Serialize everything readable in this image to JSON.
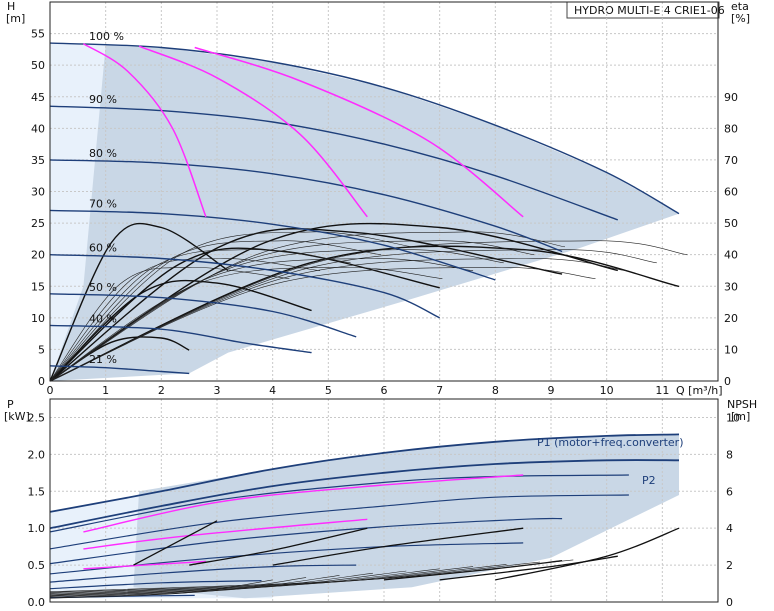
{
  "title": "HYDRO MULTI-E 4 CRIE1-06",
  "colors": {
    "speed_curve": "#1e3f7a",
    "efficiency_curve": "#ff2cff",
    "iso_efficiency": "#111111",
    "operating_area": "#c9d7e6",
    "light_area": "#e8f1fb",
    "grid": "#c8c8c8"
  },
  "top_panel": {
    "y_label_line1": "H",
    "y_label_line2": "[m]",
    "y2_label_line1": "eta",
    "y2_label_line2": "[%]",
    "x_label": "Q [m³/h]"
  },
  "bottom_panel": {
    "y_label_line1": "P",
    "y_label_line2": "[kW]",
    "y2_label_line1": "NPSH",
    "y2_label_line2": "[m]",
    "p1_label": "P1 (motor+freq.converter)",
    "p2_label": "P2"
  },
  "chart_data": [
    {
      "type": "line",
      "title": "HYDRO MULTI-E 4 CRIE1-06",
      "xlabel": "Q [m³/h]",
      "ylabel": "H [m]",
      "y2label": "eta [%]",
      "xlim": [
        0,
        12
      ],
      "ylim": [
        0,
        60
      ],
      "y2lim": [
        0,
        120
      ],
      "x_ticks": [
        0,
        1,
        2,
        3,
        4,
        5,
        6,
        7,
        8,
        9,
        10,
        11
      ],
      "y_ticks": [
        0,
        5,
        10,
        15,
        20,
        25,
        30,
        35,
        40,
        45,
        50,
        55
      ],
      "y2_ticks": [
        0,
        10,
        20,
        30,
        40,
        50,
        60,
        70,
        80,
        90
      ],
      "grid": true,
      "speed_curves": [
        {
          "name": "100 %",
          "points": [
            [
              0,
              53.5
            ],
            [
              2,
              52.8
            ],
            [
              4,
              50.5
            ],
            [
              6,
              46.5
            ],
            [
              8,
              40.5
            ],
            [
              10,
              33
            ],
            [
              11.3,
              26.5
            ]
          ]
        },
        {
          "name": "90 %",
          "points": [
            [
              0,
              43.5
            ],
            [
              2,
              42.8
            ],
            [
              4,
              41
            ],
            [
              6,
              37.5
            ],
            [
              8,
              32.5
            ],
            [
              10.2,
              25.5
            ]
          ]
        },
        {
          "name": "80 %",
          "points": [
            [
              0,
              35
            ],
            [
              2,
              34.5
            ],
            [
              4,
              32.8
            ],
            [
              6,
              29.5
            ],
            [
              8,
              24.5
            ],
            [
              9.2,
              20.5
            ]
          ]
        },
        {
          "name": "70 %",
          "points": [
            [
              0,
              27
            ],
            [
              2,
              26.5
            ],
            [
              4,
              24.8
            ],
            [
              6,
              21.5
            ],
            [
              8,
              16
            ]
          ]
        },
        {
          "name": "60 %",
          "points": [
            [
              0,
              20
            ],
            [
              2,
              19.4
            ],
            [
              4,
              17.5
            ],
            [
              6,
              14
            ],
            [
              7,
              10
            ]
          ]
        },
        {
          "name": "50 %",
          "points": [
            [
              0,
              13.8
            ],
            [
              2,
              13.2
            ],
            [
              4,
              11
            ],
            [
              5.5,
              7
            ]
          ]
        },
        {
          "name": "40 %",
          "points": [
            [
              0,
              8.8
            ],
            [
              2,
              8.2
            ],
            [
              3.5,
              6
            ],
            [
              4.7,
              4.5
            ]
          ]
        },
        {
          "name": "21 %",
          "points": [
            [
              0,
              2.4
            ],
            [
              1,
              2.1
            ],
            [
              2,
              1.5
            ],
            [
              2.5,
              1.2
            ]
          ]
        }
      ],
      "efficiency_lines": [
        [
          [
            0.6,
            53.4
          ],
          [
            1.4,
            49
          ],
          [
            2.2,
            40
          ],
          [
            2.8,
            26
          ]
        ],
        [
          [
            1.6,
            53
          ],
          [
            3,
            48
          ],
          [
            4.5,
            39
          ],
          [
            5.7,
            26
          ]
        ],
        [
          [
            2.6,
            52.8
          ],
          [
            4.5,
            47.5
          ],
          [
            6.8,
            38
          ],
          [
            8.5,
            26
          ]
        ]
      ],
      "iso_efficiency_curves": [
        {
          "peak_q": 2.0,
          "peak_h": 6.8,
          "end_q": 2.5
        },
        {
          "peak_q": 3.0,
          "peak_h": 15.5,
          "end_q": 4.7
        },
        {
          "peak_q": 4.2,
          "peak_h": 20.5,
          "end_q": 7.0
        },
        {
          "peak_q": 5.5,
          "peak_h": 23.5,
          "end_q": 9.2
        },
        {
          "peak_q": 7.0,
          "peak_h": 24.3,
          "end_q": 10.2
        },
        {
          "peak_q": 8.5,
          "peak_h": 20.8,
          "end_q": 11.3
        },
        {
          "peak_q": 2.0,
          "peak_h": 24.3,
          "end_q": 3.2
        }
      ]
    },
    {
      "type": "line",
      "xlabel": "Q [m³/h]",
      "ylabel": "P [kW]",
      "y2label": "NPSH [m]",
      "xlim": [
        0,
        12
      ],
      "ylim": [
        0,
        2.75
      ],
      "y2lim": [
        0,
        11
      ],
      "y_ticks": [
        0,
        0.5,
        1.0,
        1.5,
        2.0,
        2.5
      ],
      "y2_ticks": [
        0,
        2,
        4,
        6,
        8,
        10
      ],
      "grid": true,
      "series": [
        {
          "name": "P1 (motor+freq.converter)",
          "points": [
            [
              0,
              1.22
            ],
            [
              2,
              1.5
            ],
            [
              4,
              1.8
            ],
            [
              6,
              2.02
            ],
            [
              8,
              2.17
            ],
            [
              10,
              2.25
            ],
            [
              11.3,
              2.27
            ]
          ]
        },
        {
          "name": "P2",
          "points": [
            [
              0,
              1.0
            ],
            [
              2,
              1.3
            ],
            [
              4,
              1.57
            ],
            [
              6,
              1.75
            ],
            [
              8,
              1.87
            ],
            [
              10,
              1.92
            ],
            [
              11.3,
              1.92
            ]
          ]
        }
      ],
      "speed_power_curves": [
        {
          "points": [
            [
              0,
              0.95
            ],
            [
              3,
              1.38
            ],
            [
              6,
              1.62
            ],
            [
              8,
              1.7
            ],
            [
              10.4,
              1.72
            ]
          ]
        },
        {
          "points": [
            [
              0,
              0.72
            ],
            [
              3,
              1.08
            ],
            [
              6,
              1.3
            ],
            [
              8,
              1.42
            ],
            [
              10.4,
              1.45
            ]
          ]
        },
        {
          "points": [
            [
              0,
              0.52
            ],
            [
              3,
              0.82
            ],
            [
              6,
              1.02
            ],
            [
              8.5,
              1.12
            ],
            [
              9.2,
              1.13
            ]
          ]
        },
        {
          "points": [
            [
              0,
              0.38
            ],
            [
              3,
              0.6
            ],
            [
              6,
              0.75
            ],
            [
              8.5,
              0.8
            ]
          ]
        },
        {
          "points": [
            [
              0,
              0.27
            ],
            [
              2,
              0.39
            ],
            [
              4,
              0.48
            ],
            [
              5.5,
              0.5
            ]
          ]
        },
        {
          "points": [
            [
              0,
              0.18
            ],
            [
              2,
              0.26
            ],
            [
              3.8,
              0.29
            ]
          ]
        },
        {
          "points": [
            [
              0,
              0.06
            ],
            [
              1.5,
              0.08
            ],
            [
              2.6,
              0.09
            ]
          ]
        }
      ],
      "efficiency_power_lines": [
        [
          [
            0.6,
            0.95
          ],
          [
            3,
            1.35
          ],
          [
            5.6,
            1.56
          ],
          [
            8.5,
            1.72
          ]
        ],
        [
          [
            0.6,
            0.72
          ],
          [
            2.5,
            0.9
          ],
          [
            5.7,
            1.12
          ]
        ],
        [
          [
            0.6,
            0.45
          ],
          [
            2.8,
            0.55
          ]
        ]
      ],
      "npsh_curves": [
        {
          "points": [
            [
              1.5,
              0.5
            ],
            [
              2.5,
              0.9
            ],
            [
              3.0,
              1.1
            ]
          ]
        },
        {
          "points": [
            [
              2.5,
              0.5
            ],
            [
              4,
              0.7
            ],
            [
              5.7,
              1.0
            ]
          ]
        },
        {
          "points": [
            [
              4,
              0.5
            ],
            [
              6,
              0.75
            ],
            [
              8.5,
              1.0
            ]
          ]
        },
        {
          "points": [
            [
              6,
              0.3
            ],
            [
              8,
              0.45
            ],
            [
              9.2,
              0.56
            ]
          ]
        },
        {
          "points": [
            [
              7,
              0.3
            ],
            [
              9,
              0.48
            ],
            [
              10.2,
              0.62
            ]
          ]
        },
        {
          "points": [
            [
              8,
              0.3
            ],
            [
              10,
              0.62
            ],
            [
              11.3,
              1.0
            ]
          ]
        }
      ]
    }
  ]
}
